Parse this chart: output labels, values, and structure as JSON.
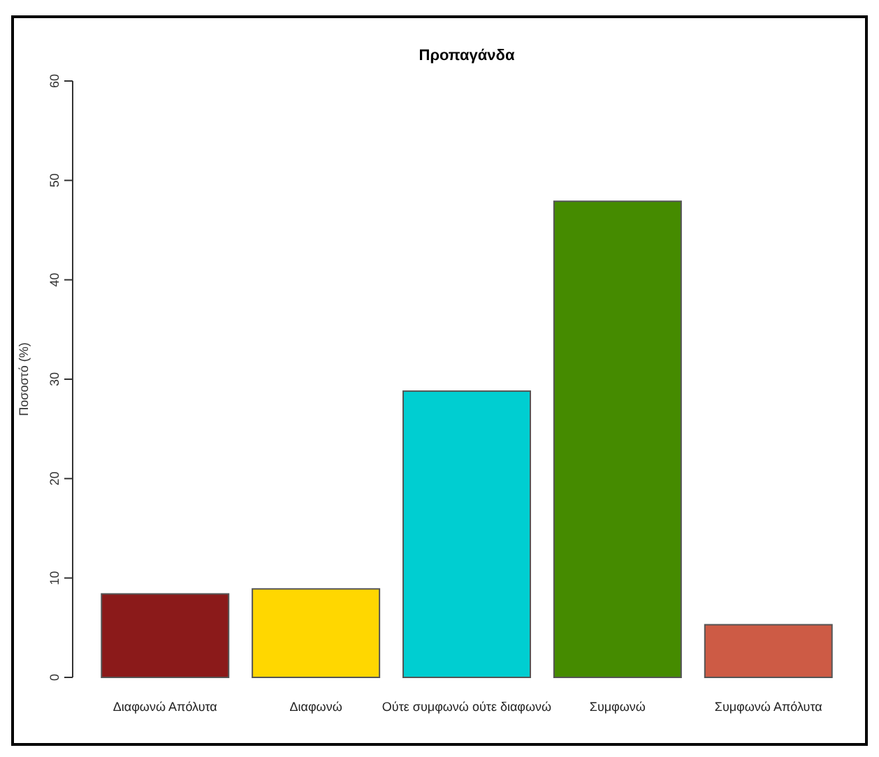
{
  "chart_data": {
    "type": "bar",
    "title": "Προπαγάνδα",
    "ylabel": "Ποσοστό (%)",
    "categories": [
      "Διαφωνώ Απόλυτα",
      "Διαφωνώ",
      "Ούτε συμφωνώ ούτε διαφωνώ",
      "Συμφωνώ",
      "Συμφωνώ Απόλυτα"
    ],
    "values": [
      8.4,
      8.9,
      28.8,
      47.9,
      5.3
    ],
    "colors": [
      "#8b1a1a",
      "#ffd700",
      "#00ced1",
      "#458b00",
      "#cd5b45"
    ],
    "ylim": [
      0,
      60
    ],
    "yticks": [
      0,
      10,
      20,
      30,
      40,
      50,
      60
    ]
  }
}
